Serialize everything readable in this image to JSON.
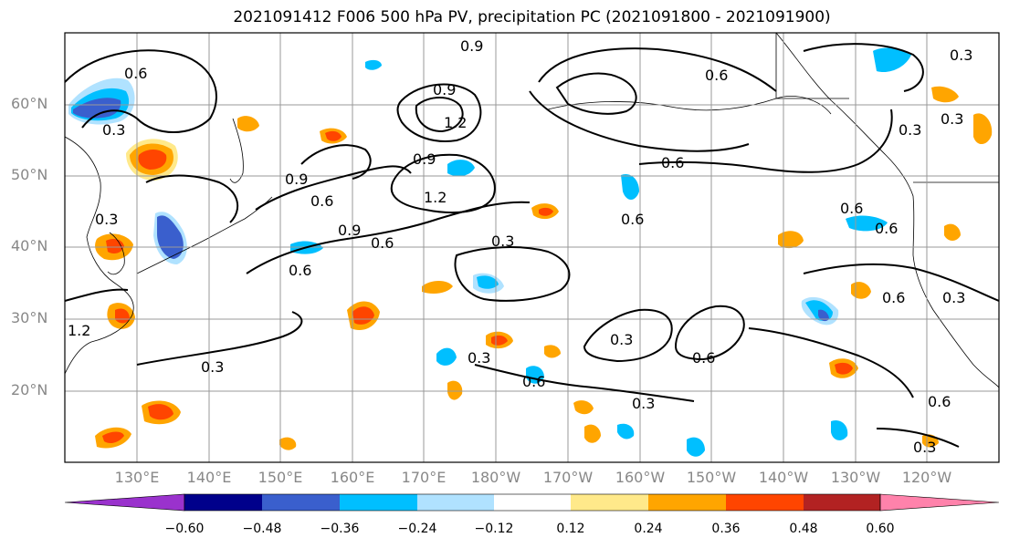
{
  "title": "2021091412 F006 500 hPa PV, precipitation PC (2021091800 - 2021091900)",
  "lat_labels": [
    "60°N",
    "50°N",
    "40°N",
    "30°N",
    "20°N"
  ],
  "lon_labels": [
    "130°E",
    "140°E",
    "150°E",
    "160°E",
    "170°E",
    "180°W",
    "170°W",
    "160°W",
    "150°W",
    "140°W",
    "130°W",
    "120°W"
  ],
  "colorbar": {
    "ticks": [
      "−0.60",
      "−0.48",
      "−0.36",
      "−0.24",
      "−0.12",
      "0.12",
      "0.24",
      "0.36",
      "0.48",
      "0.60"
    ],
    "colors": [
      "#9a32cd",
      "#00008b",
      "#3a5fcd",
      "#00bfff",
      "#b0e2ff",
      "#ffffff",
      "#ffe98a",
      "#ffa500",
      "#ff4500",
      "#b22222",
      "#ff82ab"
    ]
  },
  "contour_labels": [
    "0.9",
    "0.9",
    "0.9",
    "1.2",
    "1.2",
    "1.2",
    "0.9",
    "0.6",
    "0.6",
    "0.6",
    "0.3",
    "0.6",
    "0.6",
    "0.9",
    "0.6",
    "0.6",
    "0.3",
    "0.6",
    "0.3",
    "0.6",
    "0.3",
    "0.6",
    "0.3",
    "0.3",
    "0.3",
    "0.3",
    "0.6",
    "0.6",
    "0.3",
    "0.3",
    "0.3",
    "0.6",
    "0.3"
  ],
  "colors": {
    "land": "#000000",
    "grid": "#999999",
    "contour": "#000000"
  }
}
